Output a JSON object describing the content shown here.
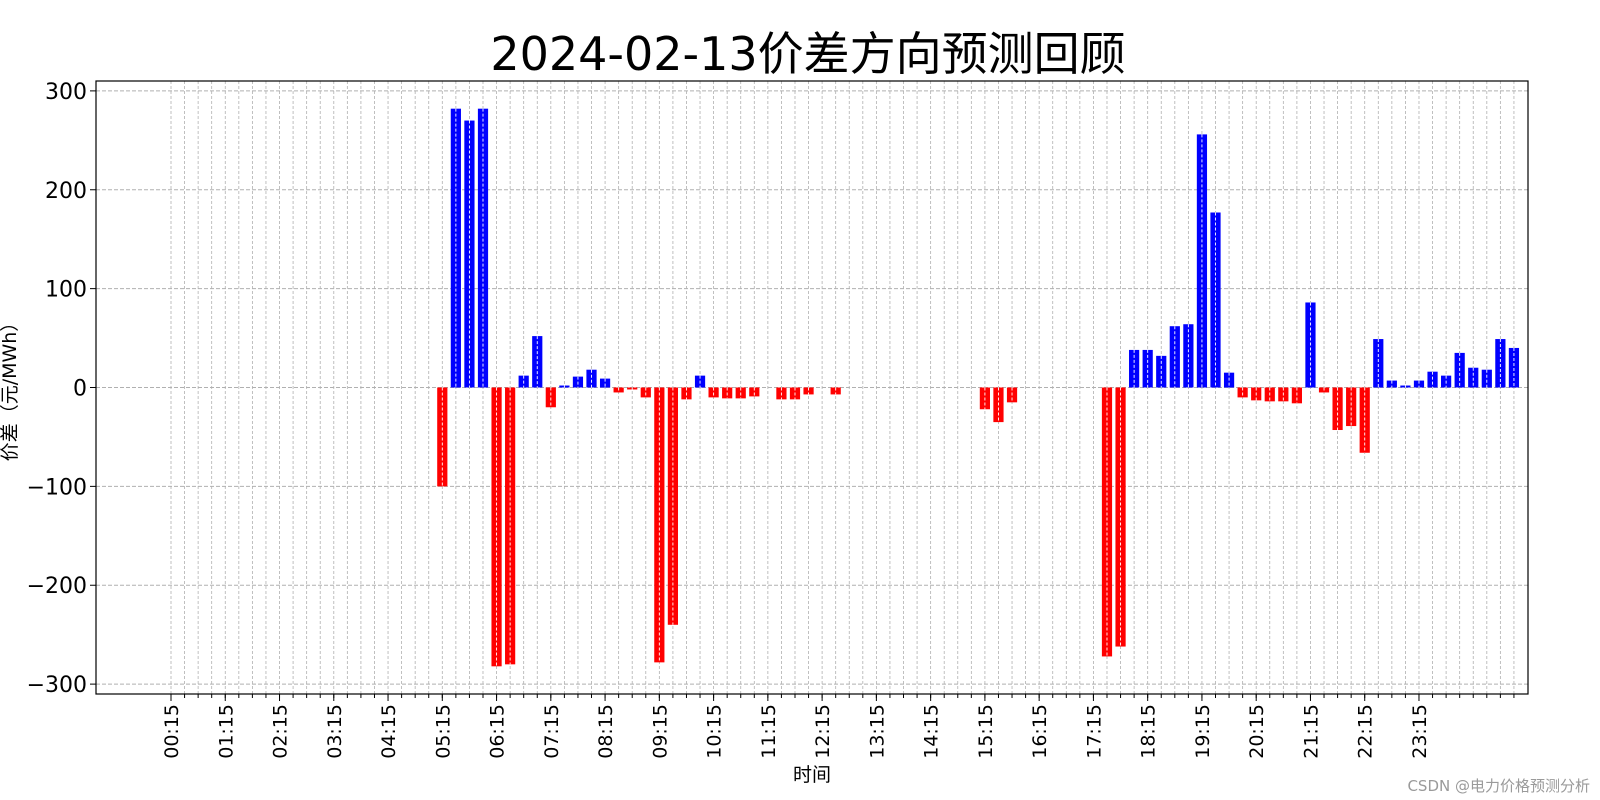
{
  "chart_data": {
    "type": "bar",
    "title": "2024-02-13价差方向预测回顾",
    "xlabel": "时间",
    "ylabel": "价差（元/MWh）",
    "ylim": [
      -310,
      310
    ],
    "yticks": [
      -300,
      -200,
      -100,
      0,
      100,
      200,
      300
    ],
    "ytick_labels": [
      "−300",
      "−200",
      "−100",
      "0",
      "100",
      "200",
      "300"
    ],
    "xtick_labels": [
      "00:15",
      "01:15",
      "02:15",
      "03:15",
      "04:15",
      "05:15",
      "06:15",
      "07:15",
      "08:15",
      "09:15",
      "10:15",
      "11:15",
      "12:15",
      "13:15",
      "14:15",
      "15:15",
      "16:15",
      "17:15",
      "18:15",
      "19:15",
      "20:15",
      "21:15",
      "22:15",
      "23:15"
    ],
    "intervals_per_label": 4,
    "grid": true,
    "positive_color": "#0000ff",
    "negative_color": "#ff0000",
    "values": [
      0,
      0,
      0,
      0,
      0,
      0,
      0,
      0,
      0,
      0,
      0,
      0,
      0,
      0,
      0,
      0,
      0,
      0,
      0,
      0,
      -100,
      282,
      270,
      282,
      -282,
      -280,
      12,
      52,
      -20,
      2,
      11,
      18,
      9,
      -5,
      -2,
      -10,
      -278,
      -240,
      -12,
      12,
      -10,
      -11,
      -11,
      -9,
      0,
      -12,
      -12,
      -7,
      0,
      -7,
      0,
      0,
      0,
      0,
      0,
      0,
      0,
      0,
      0,
      0,
      -22,
      -35,
      -15,
      0,
      0,
      0,
      0,
      0,
      0,
      -272,
      -262,
      38,
      38,
      32,
      62,
      64,
      256,
      177,
      15,
      -10,
      -13,
      -14,
      -14,
      -16,
      86,
      -5,
      -43,
      -39,
      -66,
      49,
      7,
      2,
      7,
      16,
      12,
      35,
      20,
      18,
      49,
      40
    ]
  },
  "watermark": "CSDN @电力价格预测分析"
}
